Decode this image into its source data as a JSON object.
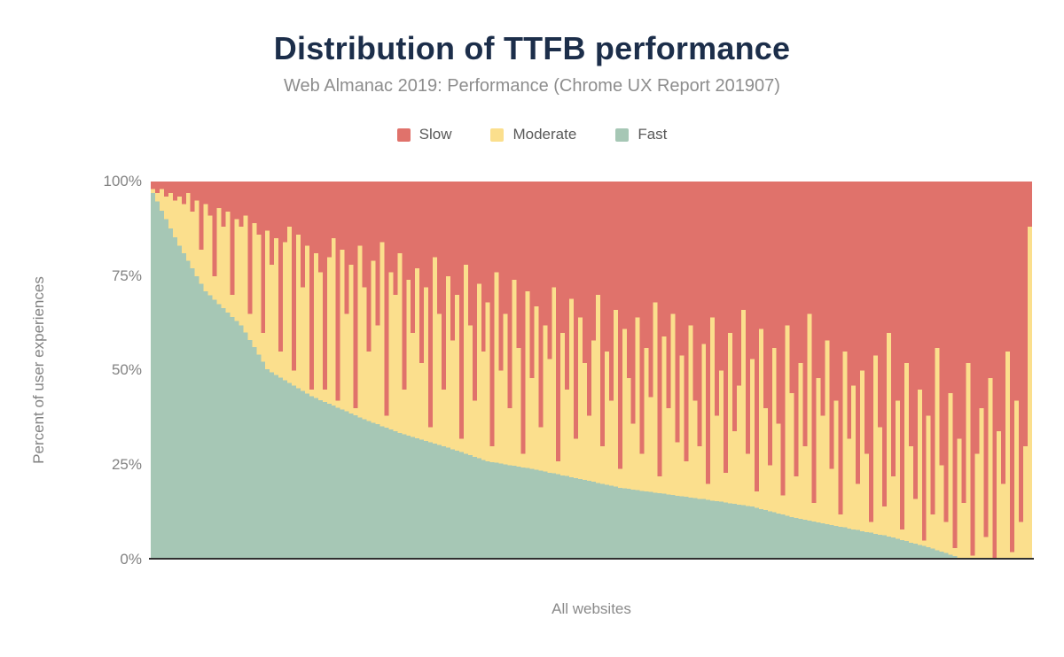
{
  "title": "Distribution of TTFB performance",
  "subtitle": "Web Almanac 2019: Performance (Chrome UX Report 201907)",
  "legend": [
    {
      "label": "Slow",
      "color": "#e0726b"
    },
    {
      "label": "Moderate",
      "color": "#fbdf8d"
    },
    {
      "label": "Fast",
      "color": "#a6c7b5"
    }
  ],
  "axes": {
    "y_title": "Percent of user experiences",
    "y_ticks": [
      "100%",
      "75%",
      "50%",
      "25%",
      "0%"
    ],
    "x_title": "All websites"
  },
  "colors": {
    "title": "#1c2e4a",
    "subtitle": "#8d8d8d",
    "axis_text": "#828282",
    "axis_line": "#2f2f2f",
    "background": "#ffffff"
  },
  "chart_data": {
    "type": "bar",
    "stacked": true,
    "percent_stacked": true,
    "title": "Distribution of TTFB performance",
    "subtitle": "Web Almanac 2019: Performance (Chrome UX Report 201907)",
    "xlabel": "All websites",
    "ylabel": "Percent of user experiences",
    "ylim": [
      0,
      100
    ],
    "y_ticks_percent": [
      0,
      25,
      50,
      75,
      100
    ],
    "grid": false,
    "legend_position": "top",
    "x_description": "Each bar is one website; websites sorted by percent of fast TTFB experiences, descending. Values in percent, read from pixels (approximate). Moderate = 100 - Fast - Slow.",
    "series": [
      {
        "name": "Fast",
        "color": "#a6c7b5",
        "values": [
          97,
          94.7,
          92.3,
          90,
          87.6,
          85.3,
          83,
          81,
          79,
          77,
          75,
          72.9,
          71,
          69.9,
          68.7,
          67.6,
          66.5,
          65.3,
          64.2,
          63.1,
          62,
          60.1,
          58.1,
          56.2,
          54.2,
          52.3,
          50.3,
          49.5,
          48.8,
          48.1,
          47.4,
          46.7,
          46,
          45.3,
          44.6,
          43.9,
          43.2,
          42.7,
          42.2,
          41.7,
          41.2,
          40.7,
          40.2,
          39.7,
          39.2,
          38.7,
          38.2,
          37.6,
          37.1,
          36.7,
          36.2,
          35.8,
          35.3,
          34.9,
          34.4,
          34,
          33.5,
          33.1,
          32.8,
          32.4,
          32.1,
          31.7,
          31.4,
          31,
          30.7,
          30.3,
          30,
          29.6,
          29.2,
          28.8,
          28.4,
          28,
          27.6,
          27.2,
          26.8,
          26.4,
          26,
          25.8,
          25.6,
          25.4,
          25.2,
          25,
          24.8,
          24.6,
          24.4,
          24.2,
          24,
          23.8,
          23.5,
          23.3,
          23,
          22.8,
          22.6,
          22.3,
          22.1,
          21.8,
          21.6,
          21.3,
          21.1,
          20.8,
          20.6,
          20.3,
          20,
          19.8,
          19.5,
          19.3,
          19,
          18.8,
          18.7,
          18.5,
          18.4,
          18.2,
          18,
          17.9,
          17.7,
          17.6,
          17.4,
          17.2,
          17.1,
          16.9,
          16.8,
          16.6,
          16.4,
          16.3,
          16.1,
          16,
          15.8,
          15.6,
          15.4,
          15.3,
          15.1,
          14.9,
          14.7,
          14.5,
          14.4,
          14.2,
          14,
          13.7,
          13.4,
          13.1,
          12.8,
          12.5,
          12.2,
          11.9,
          11.6,
          11.3,
          11,
          10.8,
          10.5,
          10.3,
          10.1,
          9.8,
          9.6,
          9.4,
          9.1,
          8.9,
          8.7,
          8.5,
          8.2,
          8,
          7.8,
          7.5,
          7.3,
          7.1,
          6.8,
          6.6,
          6.4,
          6.1,
          5.8,
          5.5,
          5.2,
          4.9,
          4.5,
          4.2,
          3.9,
          3.6,
          3.3,
          2.9,
          2.5,
          2.1,
          1.7,
          1.3,
          0.9,
          0.5,
          0,
          0,
          0,
          0,
          0,
          0,
          0,
          0,
          0,
          0,
          0,
          0,
          0,
          0,
          0,
          0
        ]
      },
      {
        "name": "Slow",
        "color": "#e0726b",
        "values": [
          2,
          3,
          2,
          4,
          3,
          5,
          4,
          6,
          3,
          8,
          5,
          18,
          6,
          9,
          25,
          7,
          12,
          8,
          30,
          10,
          12,
          9,
          35,
          11,
          14,
          40,
          13,
          22,
          15,
          45,
          16,
          12,
          50,
          14,
          28,
          17,
          55,
          19,
          24,
          55,
          20,
          15,
          58,
          18,
          35,
          22,
          60,
          17,
          28,
          45,
          21,
          38,
          16,
          62,
          24,
          30,
          19,
          55,
          26,
          40,
          23,
          48,
          28,
          65,
          20,
          35,
          55,
          25,
          42,
          30,
          68,
          22,
          38,
          58,
          27,
          45,
          32,
          70,
          24,
          50,
          35,
          60,
          26,
          44,
          72,
          29,
          52,
          33,
          65,
          38,
          47,
          28,
          74,
          40,
          55,
          31,
          68,
          36,
          48,
          62,
          42,
          30,
          70,
          45,
          58,
          34,
          76,
          39,
          52,
          64,
          36,
          72,
          44,
          57,
          32,
          78,
          41,
          60,
          35,
          69,
          46,
          74,
          38,
          58,
          70,
          43,
          80,
          36,
          62,
          50,
          77,
          40,
          66,
          54,
          34,
          72,
          47,
          82,
          39,
          60,
          75,
          44,
          64,
          83,
          38,
          56,
          78,
          48,
          70,
          35,
          85,
          52,
          62,
          42,
          76,
          58,
          88,
          45,
          68,
          54,
          80,
          50,
          72,
          90,
          46,
          65,
          86,
          40,
          78,
          58,
          92,
          48,
          70,
          84,
          55,
          95,
          62,
          88,
          44,
          75,
          90,
          56,
          97,
          68,
          85,
          48,
          99,
          72,
          60,
          94,
          52,
          100,
          66,
          80,
          45,
          98,
          58,
          90,
          70,
          12
        ]
      },
      {
        "name": "Moderate",
        "color": "#fbdf8d",
        "derived": "100 - Fast - Slow"
      }
    ]
  }
}
